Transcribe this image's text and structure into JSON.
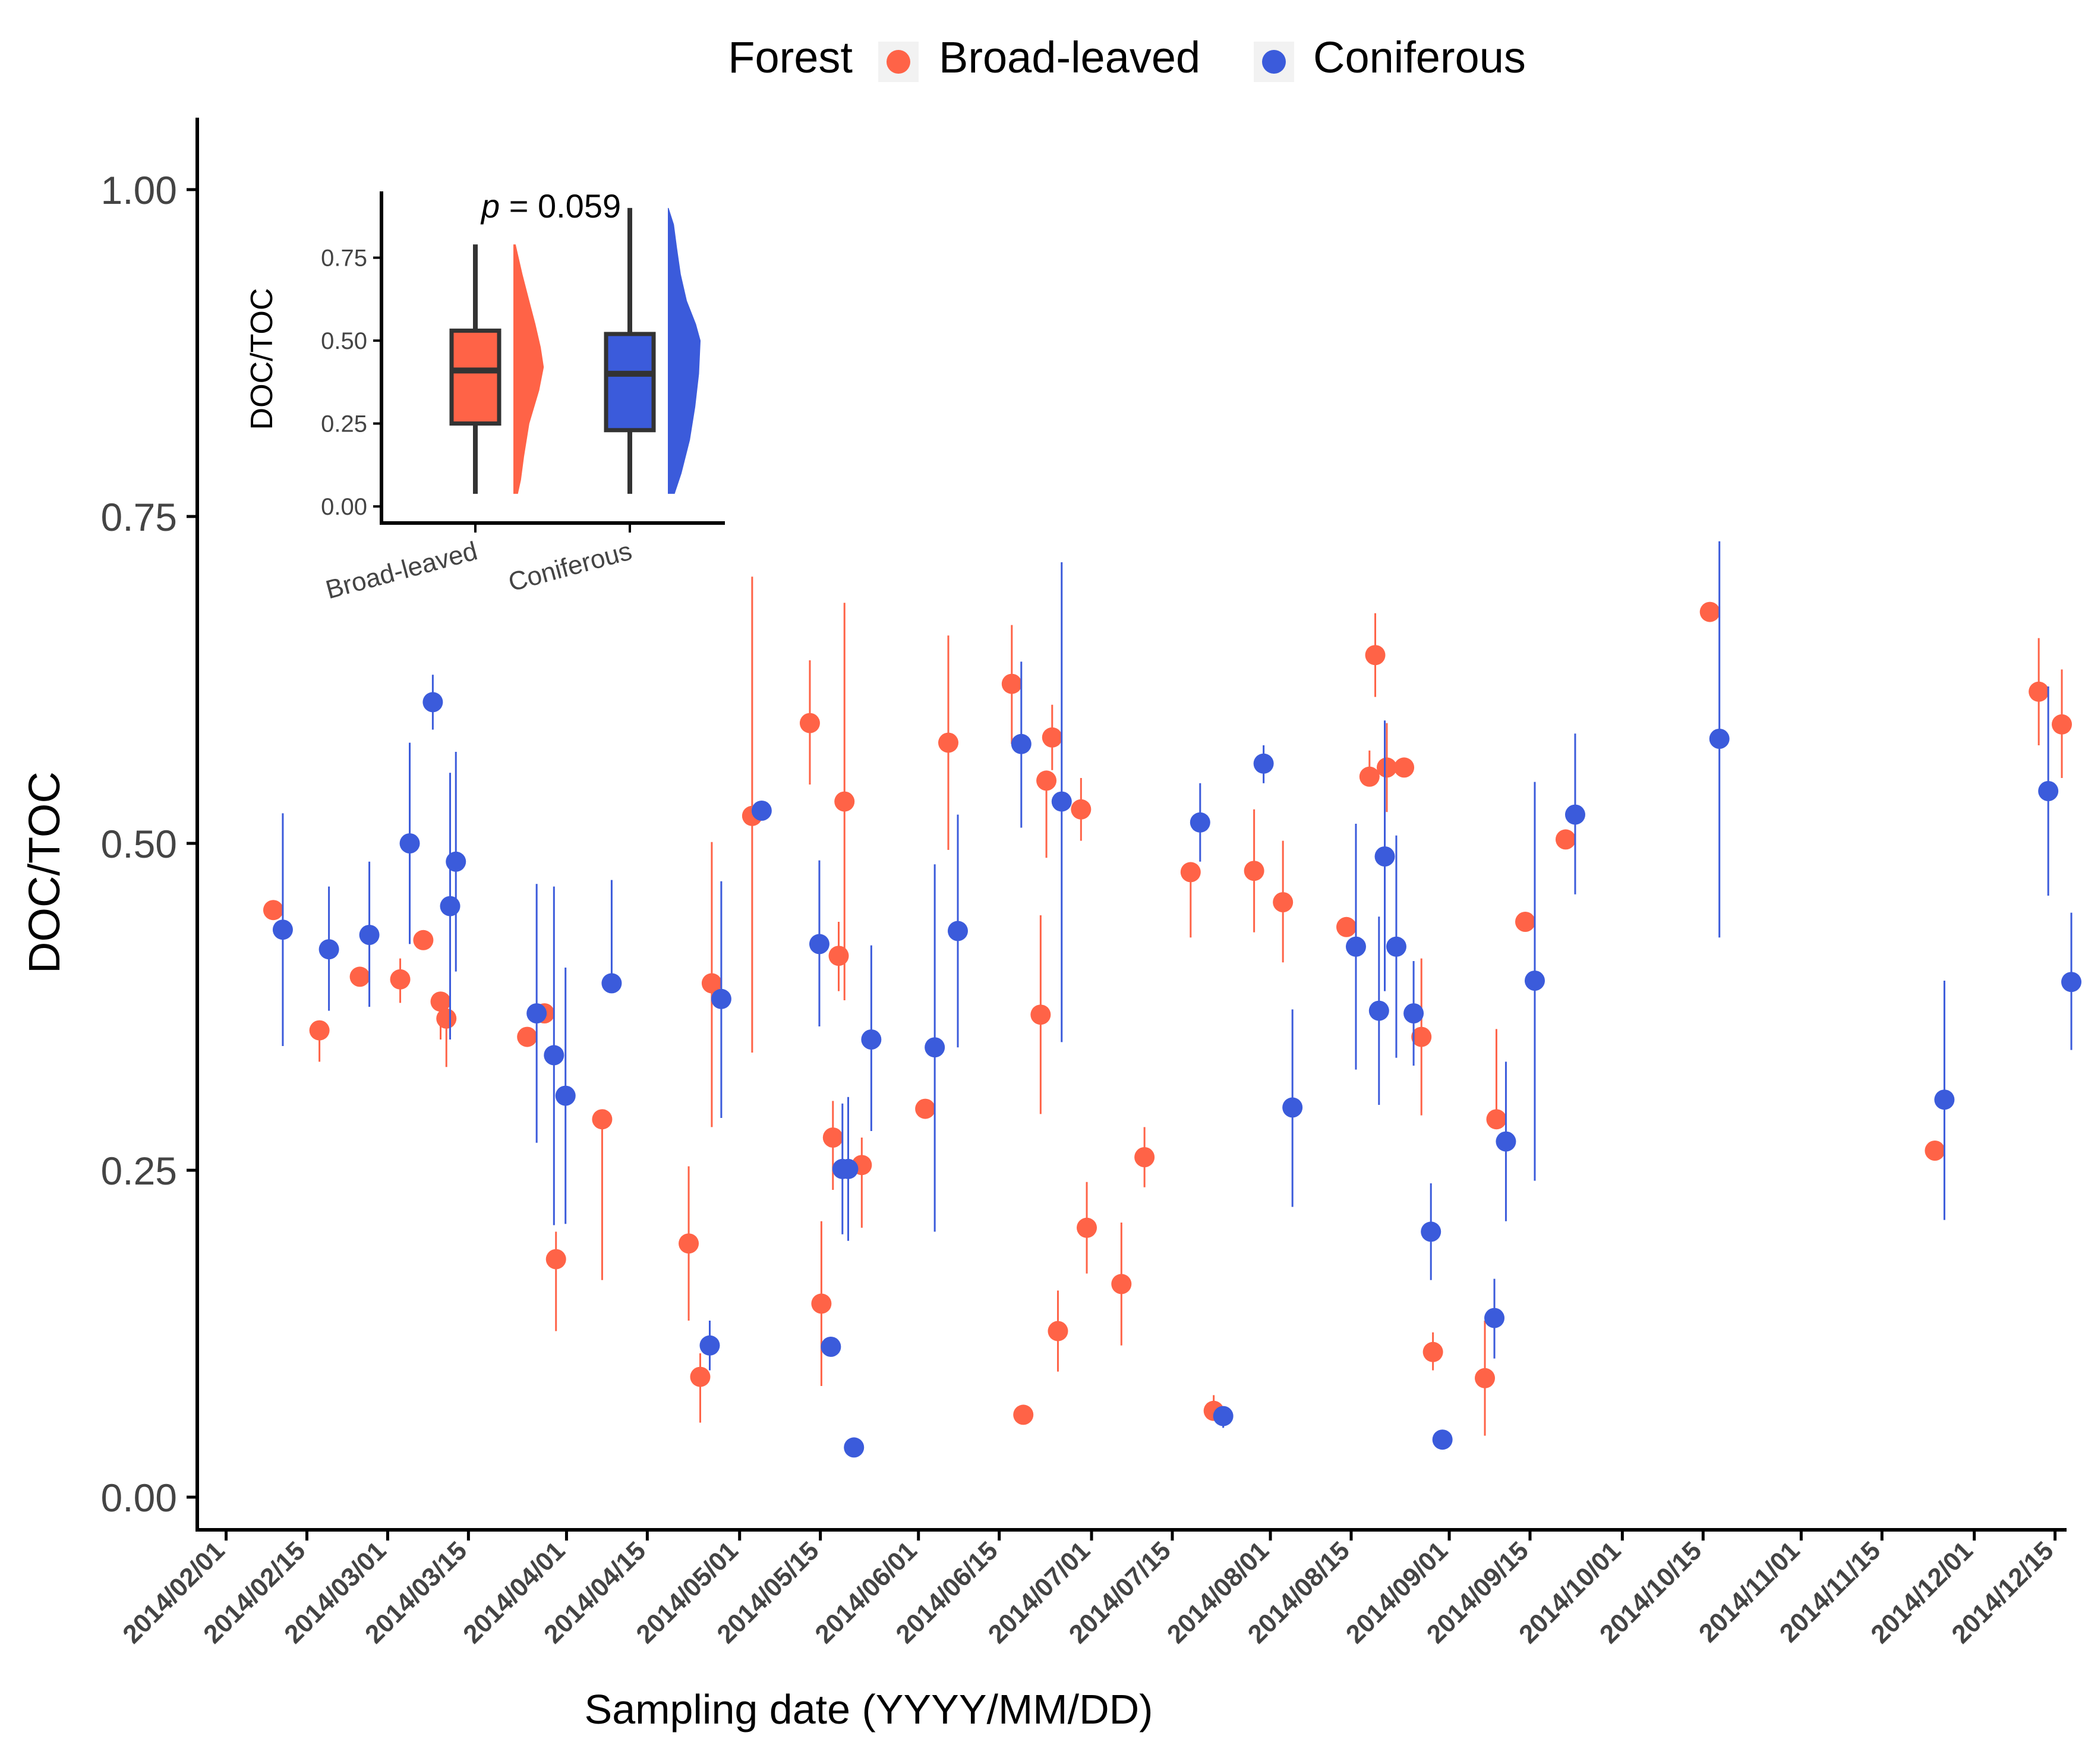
{
  "chart_data": [
    {
      "type": "scatter",
      "title": "",
      "xlabel": "Sampling date (YYYY/MM/DD)",
      "ylabel": "DOC/TOC",
      "legend": {
        "title": "Forest",
        "position": "top",
        "entries": [
          {
            "name": "Broad-leaved",
            "color": "#FF6347"
          },
          {
            "name": "Coniferous",
            "color": "#3B5BDB"
          }
        ]
      },
      "xlim": [
        "2014-01-27",
        "2014-12-17"
      ],
      "ylim": [
        -0.025,
        1.055
      ],
      "x_ticks": [
        "2014-02-01",
        "2014-02-15",
        "2014-03-01",
        "2014-03-15",
        "2014-04-01",
        "2014-04-15",
        "2014-05-01",
        "2014-05-15",
        "2014-06-01",
        "2014-06-15",
        "2014-07-01",
        "2014-07-15",
        "2014-08-01",
        "2014-08-15",
        "2014-09-01",
        "2014-09-15",
        "2014-10-01",
        "2014-10-15",
        "2014-11-01",
        "2014-11-15",
        "2014-12-01",
        "2014-12-15"
      ],
      "x_tick_labels": [
        "2014/02/01",
        "2014/02/15",
        "2014/03/01",
        "2014/03/15",
        "2014/04/01",
        "2014/04/15",
        "2014/05/01",
        "2014/05/15",
        "2014/06/01",
        "2014/06/15",
        "2014/07/01",
        "2014/07/15",
        "2014/08/01",
        "2014/08/15",
        "2014/09/01",
        "2014/09/15",
        "2014/10/01",
        "2014/10/15",
        "2014/11/01",
        "2014/11/15",
        "2014/12/01",
        "2014/12/15"
      ],
      "y_ticks": [
        0,
        0.25,
        0.5,
        0.75,
        1.0
      ],
      "y_tick_labels": [
        "0.00",
        "0.25",
        "0.50",
        "0.75",
        "1.00"
      ],
      "grid": false,
      "series": [
        {
          "name": "Broad-leaved",
          "color": "#FF6347",
          "points": [
            {
              "x": "2014-02-10",
              "y": 0.449,
              "lo": 0.449,
              "hi": 0.449
            },
            {
              "x": "2014-02-18",
              "y": 0.357,
              "lo": 0.333,
              "hi": 0.357
            },
            {
              "x": "2014-02-25",
              "y": 0.398,
              "lo": 0.398,
              "hi": 0.398
            },
            {
              "x": "2014-03-04",
              "y": 0.396,
              "lo": 0.378,
              "hi": 0.412
            },
            {
              "x": "2014-03-08",
              "y": 0.426,
              "lo": 0.426,
              "hi": 0.426
            },
            {
              "x": "2014-03-11",
              "y": 0.379,
              "lo": 0.35,
              "hi": 0.379
            },
            {
              "x": "2014-03-12",
              "y": 0.366,
              "lo": 0.329,
              "hi": 0.366
            },
            {
              "x": "2014-03-26",
              "y": 0.352,
              "lo": 0.352,
              "hi": 0.352
            },
            {
              "x": "2014-03-29",
              "y": 0.37,
              "lo": 0.37,
              "hi": 0.37
            },
            {
              "x": "2014-03-31",
              "y": 0.182,
              "lo": 0.127,
              "hi": 0.203
            },
            {
              "x": "2014-04-08",
              "y": 0.289,
              "lo": 0.166,
              "hi": 0.289
            },
            {
              "x": "2014-04-23",
              "y": 0.194,
              "lo": 0.135,
              "hi": 0.253
            },
            {
              "x": "2014-04-25",
              "y": 0.092,
              "lo": 0.057,
              "hi": 0.11
            },
            {
              "x": "2014-04-27",
              "y": 0.393,
              "lo": 0.283,
              "hi": 0.501
            },
            {
              "x": "2014-05-04",
              "y": 0.521,
              "lo": 0.34,
              "hi": 0.704
            },
            {
              "x": "2014-05-14",
              "y": 0.592,
              "lo": 0.545,
              "hi": 0.64
            },
            {
              "x": "2014-05-16",
              "y": 0.148,
              "lo": 0.085,
              "hi": 0.211
            },
            {
              "x": "2014-05-18",
              "y": 0.275,
              "lo": 0.235,
              "hi": 0.303
            },
            {
              "x": "2014-05-19",
              "y": 0.414,
              "lo": 0.387,
              "hi": 0.44
            },
            {
              "x": "2014-05-20",
              "y": 0.532,
              "lo": 0.38,
              "hi": 0.684
            },
            {
              "x": "2014-05-23",
              "y": 0.254,
              "lo": 0.206,
              "hi": 0.275
            },
            {
              "x": "2014-06-03",
              "y": 0.297,
              "lo": 0.297,
              "hi": 0.297
            },
            {
              "x": "2014-06-07",
              "y": 0.577,
              "lo": 0.495,
              "hi": 0.659
            },
            {
              "x": "2014-06-18",
              "y": 0.622,
              "lo": 0.576,
              "hi": 0.667
            },
            {
              "x": "2014-06-20",
              "y": 0.063,
              "lo": 0.063,
              "hi": 0.063
            },
            {
              "x": "2014-06-23",
              "y": 0.369,
              "lo": 0.293,
              "hi": 0.445
            },
            {
              "x": "2014-06-24",
              "y": 0.548,
              "lo": 0.489,
              "hi": 0.548
            },
            {
              "x": "2014-06-25",
              "y": 0.581,
              "lo": 0.556,
              "hi": 0.606
            },
            {
              "x": "2014-06-26",
              "y": 0.127,
              "lo": 0.096,
              "hi": 0.158
            },
            {
              "x": "2014-06-30",
              "y": 0.526,
              "lo": 0.502,
              "hi": 0.55
            },
            {
              "x": "2014-07-01",
              "y": 0.206,
              "lo": 0.171,
              "hi": 0.241
            },
            {
              "x": "2014-07-07",
              "y": 0.163,
              "lo": 0.116,
              "hi": 0.21
            },
            {
              "x": "2014-07-11",
              "y": 0.26,
              "lo": 0.237,
              "hi": 0.283
            },
            {
              "x": "2014-07-19",
              "y": 0.478,
              "lo": 0.428,
              "hi": 0.478
            },
            {
              "x": "2014-07-23",
              "y": 0.066,
              "lo": 0.066,
              "hi": 0.078
            },
            {
              "x": "2014-07-30",
              "y": 0.479,
              "lo": 0.432,
              "hi": 0.526
            },
            {
              "x": "2014-08-04",
              "y": 0.455,
              "lo": 0.409,
              "hi": 0.502
            },
            {
              "x": "2014-08-15",
              "y": 0.436,
              "lo": 0.436,
              "hi": 0.436
            },
            {
              "x": "2014-08-19",
              "y": 0.551,
              "lo": 0.551,
              "hi": 0.571
            },
            {
              "x": "2014-08-20",
              "y": 0.644,
              "lo": 0.612,
              "hi": 0.676
            },
            {
              "x": "2014-08-22",
              "y": 0.558,
              "lo": 0.524,
              "hi": 0.592
            },
            {
              "x": "2014-08-25",
              "y": 0.558,
              "lo": 0.558,
              "hi": 0.558
            },
            {
              "x": "2014-08-28",
              "y": 0.352,
              "lo": 0.292,
              "hi": 0.412
            },
            {
              "x": "2014-08-30",
              "y": 0.111,
              "lo": 0.097,
              "hi": 0.126
            },
            {
              "x": "2014-09-08",
              "y": 0.091,
              "lo": 0.047,
              "hi": 0.135
            },
            {
              "x": "2014-09-10",
              "y": 0.289,
              "lo": 0.289,
              "hi": 0.358
            },
            {
              "x": "2014-09-15",
              "y": 0.44,
              "lo": 0.44,
              "hi": 0.44
            },
            {
              "x": "2014-09-22",
              "y": 0.503,
              "lo": 0.503,
              "hi": 0.503
            },
            {
              "x": "2014-10-17",
              "y": 0.677,
              "lo": 0.677,
              "hi": 0.677
            },
            {
              "x": "2014-11-25",
              "y": 0.265,
              "lo": 0.265,
              "hi": 0.265
            },
            {
              "x": "2014-12-13",
              "y": 0.616,
              "lo": 0.575,
              "hi": 0.657
            },
            {
              "x": "2014-12-17",
              "y": 0.591,
              "lo": 0.55,
              "hi": 0.633
            }
          ]
        },
        {
          "name": "Coniferous",
          "color": "#3B5BDB",
          "points": [
            {
              "x": "2014-02-10",
              "y": 0.434,
              "lo": 0.345,
              "hi": 0.523
            },
            {
              "x": "2014-02-18",
              "y": 0.419,
              "lo": 0.372,
              "hi": 0.467
            },
            {
              "x": "2014-02-25",
              "y": 0.43,
              "lo": 0.375,
              "hi": 0.486
            },
            {
              "x": "2014-03-04",
              "y": 0.5,
              "lo": 0.423,
              "hi": 0.577
            },
            {
              "x": "2014-03-08",
              "y": 0.608,
              "lo": 0.587,
              "hi": 0.629
            },
            {
              "x": "2014-03-11",
              "y": 0.452,
              "lo": 0.35,
              "hi": 0.554
            },
            {
              "x": "2014-03-12",
              "y": 0.486,
              "lo": 0.402,
              "hi": 0.57
            },
            {
              "x": "2014-03-26",
              "y": 0.37,
              "lo": 0.271,
              "hi": 0.469
            },
            {
              "x": "2014-03-29",
              "y": 0.338,
              "lo": 0.208,
              "hi": 0.467
            },
            {
              "x": "2014-03-31",
              "y": 0.307,
              "lo": 0.209,
              "hi": 0.405
            },
            {
              "x": "2014-04-08",
              "y": 0.393,
              "lo": 0.393,
              "hi": 0.472
            },
            {
              "x": "2014-04-25",
              "y": 0.116,
              "lo": 0.097,
              "hi": 0.135
            },
            {
              "x": "2014-04-27",
              "y": 0.381,
              "lo": 0.29,
              "hi": 0.471
            },
            {
              "x": "2014-05-04",
              "y": 0.525,
              "lo": 0.525,
              "hi": 0.525
            },
            {
              "x": "2014-05-14",
              "y": 0.423,
              "lo": 0.36,
              "hi": 0.487
            },
            {
              "x": "2014-05-16",
              "y": 0.115,
              "lo": 0.115,
              "hi": 0.115
            },
            {
              "x": "2014-05-18",
              "y": 0.251,
              "lo": 0.201,
              "hi": 0.301
            },
            {
              "x": "2014-05-19",
              "y": 0.251,
              "lo": 0.196,
              "hi": 0.306
            },
            {
              "x": "2014-05-20",
              "y": 0.038,
              "lo": 0.038,
              "hi": 0.038
            },
            {
              "x": "2014-05-23",
              "y": 0.35,
              "lo": 0.28,
              "hi": 0.422
            },
            {
              "x": "2014-06-03",
              "y": 0.344,
              "lo": 0.203,
              "hi": 0.484
            },
            {
              "x": "2014-06-07",
              "y": 0.433,
              "lo": 0.344,
              "hi": 0.522
            },
            {
              "x": "2014-06-18",
              "y": 0.576,
              "lo": 0.512,
              "hi": 0.639
            },
            {
              "x": "2014-06-25",
              "y": 0.532,
              "lo": 0.348,
              "hi": 0.715
            },
            {
              "x": "2014-07-19",
              "y": 0.516,
              "lo": 0.486,
              "hi": 0.546
            },
            {
              "x": "2014-07-23",
              "y": 0.062,
              "lo": 0.053,
              "hi": 0.062
            },
            {
              "x": "2014-07-30",
              "y": 0.561,
              "lo": 0.546,
              "hi": 0.575
            },
            {
              "x": "2014-08-04",
              "y": 0.298,
              "lo": 0.222,
              "hi": 0.373
            },
            {
              "x": "2014-08-15",
              "y": 0.421,
              "lo": 0.327,
              "hi": 0.515
            },
            {
              "x": "2014-08-19",
              "y": 0.372,
              "lo": 0.3,
              "hi": 0.444
            },
            {
              "x": "2014-08-20",
              "y": 0.49,
              "lo": 0.387,
              "hi": 0.594
            },
            {
              "x": "2014-08-22",
              "y": 0.421,
              "lo": 0.336,
              "hi": 0.506
            },
            {
              "x": "2014-08-25",
              "y": 0.37,
              "lo": 0.33,
              "hi": 0.41
            },
            {
              "x": "2014-08-28",
              "y": 0.203,
              "lo": 0.166,
              "hi": 0.24
            },
            {
              "x": "2014-08-30",
              "y": 0.044,
              "lo": 0.044,
              "hi": 0.044
            },
            {
              "x": "2014-09-08",
              "y": 0.137,
              "lo": 0.106,
              "hi": 0.167
            },
            {
              "x": "2014-09-10",
              "y": 0.272,
              "lo": 0.211,
              "hi": 0.333
            },
            {
              "x": "2014-09-15",
              "y": 0.395,
              "lo": 0.242,
              "hi": 0.547
            },
            {
              "x": "2014-09-22",
              "y": 0.522,
              "lo": 0.461,
              "hi": 0.584
            },
            {
              "x": "2014-10-17",
              "y": 0.58,
              "lo": 0.428,
              "hi": 0.731
            },
            {
              "x": "2014-11-25",
              "y": 0.304,
              "lo": 0.212,
              "hi": 0.395
            },
            {
              "x": "2014-12-13",
              "y": 0.54,
              "lo": 0.46,
              "hi": 0.62
            },
            {
              "x": "2014-12-17",
              "y": 0.394,
              "lo": 0.342,
              "hi": 0.447
            }
          ]
        }
      ]
    },
    {
      "type": "box",
      "title": "",
      "annotation": {
        "prefix": "p",
        "text": " = 0.059"
      },
      "ylabel": "DOC/TOC",
      "categories": [
        "Broad-leaved",
        "Coniferous"
      ],
      "ylim": [
        -0.05,
        0.95
      ],
      "y_ticks": [
        0,
        0.25,
        0.5,
        0.75
      ],
      "y_tick_labels": [
        "0.00",
        "0.25",
        "0.50",
        "0.75"
      ],
      "series": [
        {
          "name": "Broad-leaved",
          "color": "#FF6347",
          "min": 0.038,
          "q1": 0.25,
          "median": 0.41,
          "q3": 0.53,
          "max": 0.79,
          "density": [
            [
              0.038,
              0.12
            ],
            [
              0.08,
              0.2
            ],
            [
              0.15,
              0.28
            ],
            [
              0.25,
              0.42
            ],
            [
              0.35,
              0.68
            ],
            [
              0.42,
              0.8
            ],
            [
              0.48,
              0.72
            ],
            [
              0.55,
              0.58
            ],
            [
              0.62,
              0.42
            ],
            [
              0.7,
              0.24
            ],
            [
              0.79,
              0.06
            ]
          ]
        },
        {
          "name": "Coniferous",
          "color": "#3B5BDB",
          "min": 0.038,
          "q1": 0.23,
          "median": 0.4,
          "q3": 0.52,
          "max": 0.9,
          "density": [
            [
              0.038,
              0.18
            ],
            [
              0.1,
              0.36
            ],
            [
              0.2,
              0.58
            ],
            [
              0.3,
              0.72
            ],
            [
              0.4,
              0.82
            ],
            [
              0.5,
              0.86
            ],
            [
              0.55,
              0.74
            ],
            [
              0.62,
              0.5
            ],
            [
              0.7,
              0.34
            ],
            [
              0.78,
              0.24
            ],
            [
              0.85,
              0.16
            ],
            [
              0.9,
              0.02
            ]
          ]
        }
      ]
    }
  ]
}
